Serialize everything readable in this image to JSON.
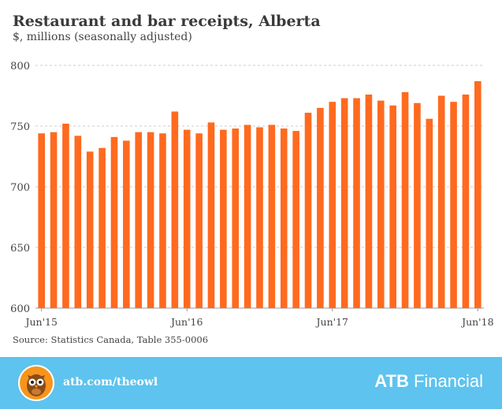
{
  "header": {
    "title": "Restaurant and bar receipts, Alberta",
    "subtitle": "$, millions  (seasonally adjusted)"
  },
  "source": "Source: Statistics Canada, Table 355-0006",
  "footer": {
    "link": "atb.com/theowl",
    "brand_bold": "ATB",
    "brand_rest": " Financial",
    "background_color": "#5ec3ee",
    "owl_icon": "owl-icon"
  },
  "chart_data": {
    "type": "bar",
    "bar_color": "#ff6a1f",
    "ylim": [
      600,
      800
    ],
    "yticks": [
      600,
      650,
      700,
      750,
      800
    ],
    "grid": "horizontal dashed",
    "x_tick_labels": [
      {
        "index": 0,
        "label": "Jun'15"
      },
      {
        "index": 12,
        "label": "Jun'16"
      },
      {
        "index": 24,
        "label": "Jun'17"
      },
      {
        "index": 36,
        "label": "Jun'18"
      }
    ],
    "categories": [
      "Jun'15",
      "Jul'15",
      "Aug'15",
      "Sep'15",
      "Oct'15",
      "Nov'15",
      "Dec'15",
      "Jan'16",
      "Feb'16",
      "Mar'16",
      "Apr'16",
      "May'16",
      "Jun'16",
      "Jul'16",
      "Aug'16",
      "Sep'16",
      "Oct'16",
      "Nov'16",
      "Dec'16",
      "Jan'17",
      "Feb'17",
      "Mar'17",
      "Apr'17",
      "May'17",
      "Jun'17",
      "Jul'17",
      "Aug'17",
      "Sep'17",
      "Oct'17",
      "Nov'17",
      "Dec'17",
      "Jan'18",
      "Feb'18",
      "Mar'18",
      "Apr'18",
      "May'18",
      "Jun'18"
    ],
    "values": [
      744,
      745,
      752,
      742,
      729,
      732,
      741,
      738,
      745,
      745,
      744,
      762,
      747,
      744,
      753,
      747,
      748,
      751,
      749,
      751,
      748,
      746,
      761,
      765,
      770,
      773,
      773,
      776,
      771,
      767,
      778,
      769,
      756,
      775,
      770,
      776,
      787
    ]
  }
}
